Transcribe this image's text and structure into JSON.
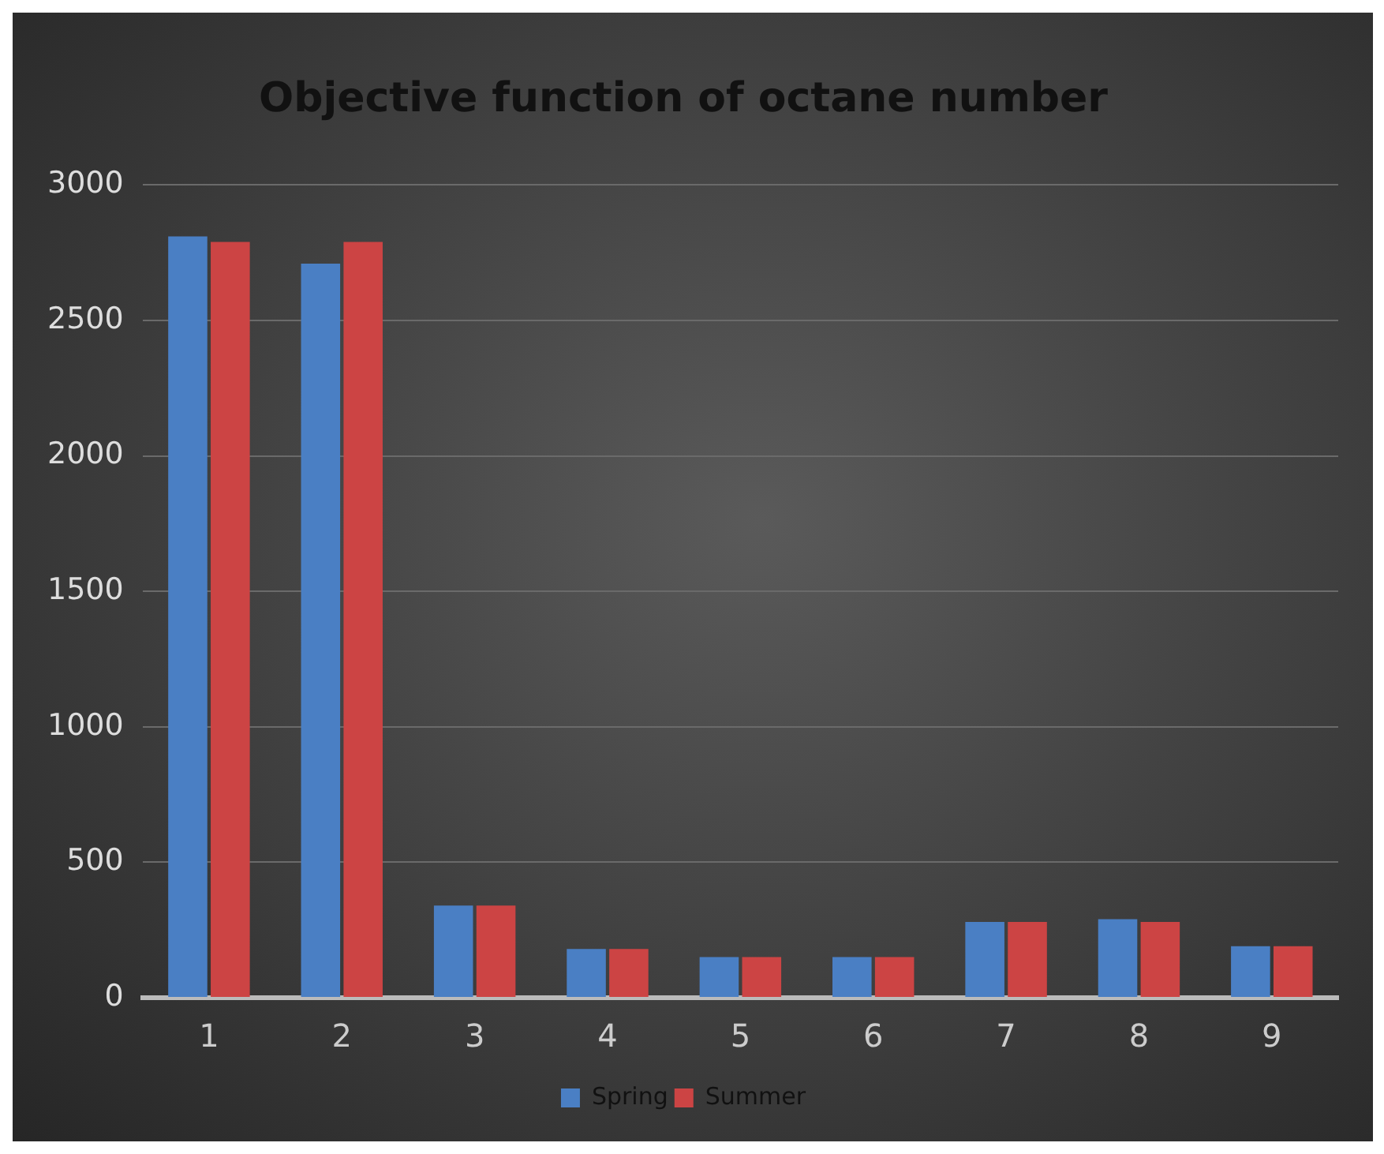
{
  "chart_data": {
    "type": "bar",
    "title": "Objective function of octane number",
    "categories": [
      "1",
      "2",
      "3",
      "4",
      "5",
      "6",
      "7",
      "8",
      "9"
    ],
    "series": [
      {
        "name": "Spring",
        "color": "#4a7fc4",
        "values": [
          2810,
          2710,
          340,
          180,
          150,
          150,
          280,
          290,
          190
        ]
      },
      {
        "name": "Summer",
        "color": "#cc4444",
        "values": [
          2790,
          2790,
          340,
          180,
          150,
          150,
          280,
          280,
          190
        ]
      }
    ],
    "ylim": [
      0,
      3000
    ],
    "yticks": [
      0,
      500,
      1000,
      1500,
      2000,
      2500,
      3000
    ],
    "grid": "y",
    "legend": "bottom"
  }
}
